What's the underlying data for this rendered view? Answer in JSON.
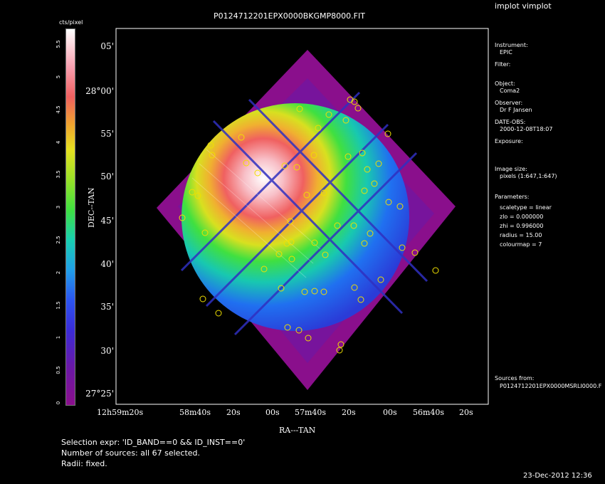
{
  "window": {
    "title": "implot vimplot"
  },
  "image": {
    "filename": "P0124712201EPX0000BKGMP8000.FIT"
  },
  "colorbar": {
    "unit": "cts/pixel",
    "ticks": [
      "0",
      "0.5",
      "1",
      "1.5",
      "2",
      "2.5",
      "3",
      "3.5",
      "4",
      "4.5",
      "5",
      "5.5"
    ]
  },
  "axes": {
    "dec_label": "DEC--TAN",
    "ra_label": "RA---TAN",
    "dec_ticks": [
      "05'",
      "28°00'",
      "55'",
      "50'",
      "45'",
      "40'",
      "35'",
      "30'",
      "27°25'"
    ],
    "ra_ticks": [
      "12h59m20s",
      "58m40s",
      "20s",
      "00s",
      "57m40s",
      "20s",
      "00s",
      "56m40s",
      "20s"
    ]
  },
  "info": {
    "instrument_label": "Instrument:",
    "instrument": "EPIC",
    "filter_label": "Filter:",
    "object_label": "Object:",
    "object": "Coma2",
    "observer_label": "Observer:",
    "observer": "Dr F Jansen",
    "date_label": "DATE-OBS:",
    "date": "2000-12-08T18:07",
    "exposure_label": "Exposure:",
    "image_size_label": "Image size:",
    "image_size": "pixels (1:647,1:647)",
    "parameters_label": "Parameters:",
    "params": [
      "scaletype = linear",
      "zlo = 0.000000",
      "zhi = 0.996000",
      "radius = 15.00",
      "colourmap = 7"
    ],
    "sources_label": "Sources from:",
    "sources_file": "P0124712201EPX0000MSRLI0000.F"
  },
  "footer": {
    "selection": "Selection expr: 'ID_BAND==0 && ID_INST==0'",
    "count": "Number of sources: all 67 selected.",
    "radii": "Radii: fixed.",
    "timestamp": "23-Dec-2012 12:36"
  },
  "colors": {
    "background": "#000000",
    "source_marker": "#f0e000",
    "frame": "#ffffff"
  }
}
